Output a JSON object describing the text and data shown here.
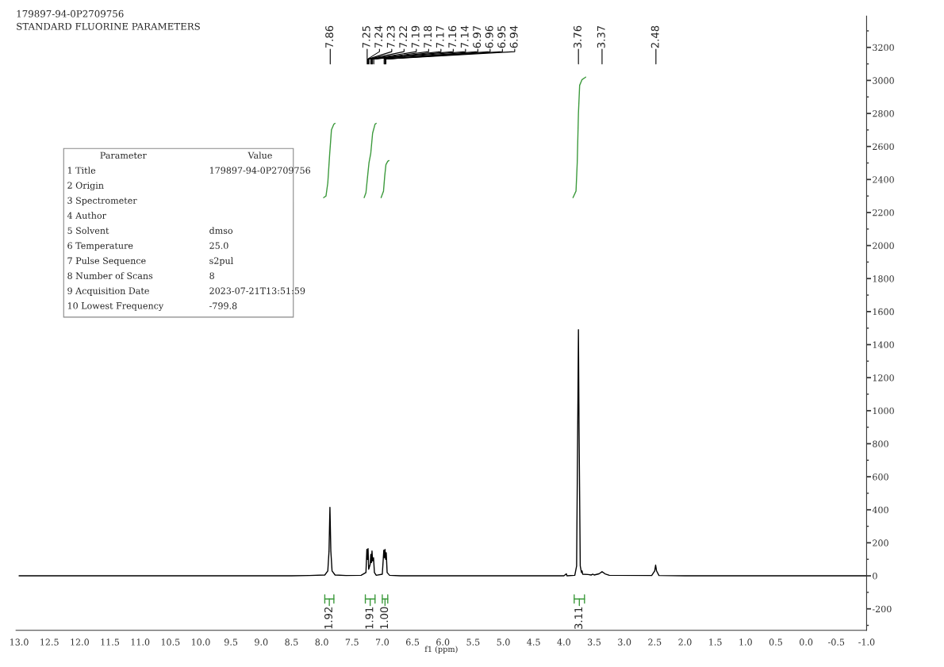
{
  "chart_data": {
    "type": "line",
    "title": "179897-94-0P2709756",
    "subtitle": "STANDARD FLUORINE PARAMETERS",
    "xlabel": "f1 (ppm)",
    "xlim": [
      13.05,
      -1.0
    ],
    "ylim": [
      -330,
      3390
    ],
    "xticks": [
      {
        "value": 13,
        "label": "13.0"
      },
      12.5,
      {
        "value": 12,
        "label": "12.0"
      },
      11.5,
      {
        "value": 11,
        "label": "11.0"
      },
      10.5,
      {
        "value": 10,
        "label": "10.0"
      },
      9.5,
      {
        "value": 9,
        "label": "9.0"
      },
      8.5,
      {
        "value": 8,
        "label": "8.0"
      },
      7.5,
      {
        "value": 7,
        "label": "7.0"
      },
      6.5,
      {
        "value": 6,
        "label": "6.0"
      },
      5.5,
      {
        "value": 5,
        "label": "5.0"
      },
      4.5,
      {
        "value": 4,
        "label": "4.0"
      },
      3.5,
      {
        "value": 3,
        "label": "3.0"
      },
      2.5,
      {
        "value": 2,
        "label": "2.0"
      },
      1.5,
      {
        "value": 1,
        "label": "1.0"
      },
      0.5,
      {
        "value": 0,
        "label": "0.0"
      },
      -0.5,
      {
        "value": -1,
        "label": "-1.0"
      }
    ],
    "yticks": [
      -200,
      0,
      200,
      400,
      600,
      800,
      1000,
      1200,
      1400,
      1600,
      1800,
      2000,
      2200,
      2400,
      2600,
      2800,
      3000,
      3200
    ],
    "grid": false,
    "legend": false,
    "tick_labels": "xy",
    "line_style": "solid",
    "series": [
      {
        "color": "#000000",
        "x": [
          13.0,
          8.5,
          8.2,
          7.95,
          7.9,
          7.88,
          7.865,
          7.85,
          7.83,
          7.78,
          7.6,
          7.35,
          7.27,
          7.255,
          7.245,
          7.235,
          7.225,
          7.2,
          7.19,
          7.18,
          7.17,
          7.16,
          7.145,
          7.13,
          7.1,
          7.0,
          6.975,
          6.965,
          6.955,
          6.945,
          6.935,
          6.92,
          6.88,
          6.7,
          4.0,
          3.96,
          3.95,
          3.82,
          3.79,
          3.77,
          3.76,
          3.75,
          3.73,
          3.71,
          3.7,
          3.69,
          3.6,
          3.55,
          3.52,
          3.5,
          3.42,
          3.37,
          3.32,
          3.25,
          2.55,
          2.5,
          2.485,
          2.47,
          2.43,
          2.0,
          -1.0
        ],
        "values": [
          0,
          0,
          2,
          5,
          30,
          150,
          415,
          150,
          30,
          5,
          2,
          3,
          20,
          160,
          100,
          165,
          40,
          70,
          130,
          80,
          150,
          90,
          110,
          20,
          3,
          10,
          155,
          110,
          160,
          100,
          140,
          20,
          3,
          0,
          0,
          12,
          0,
          3,
          60,
          1000,
          1490,
          900,
          60,
          20,
          30,
          10,
          8,
          5,
          10,
          5,
          12,
          25,
          12,
          3,
          2,
          30,
          65,
          30,
          2,
          0,
          0
        ]
      },
      {
        "color": "#3c9a3c",
        "x": [
          7.97,
          7.93,
          7.9,
          7.87,
          7.84,
          7.8,
          7.78
        ],
        "values": [
          2290,
          2300,
          2380,
          2550,
          2700,
          2735,
          2740
        ]
      },
      {
        "color": "#3c9a3c",
        "x": [
          7.3,
          7.27,
          7.24,
          7.22,
          7.19,
          7.16,
          7.12,
          7.1
        ],
        "values": [
          2290,
          2320,
          2430,
          2500,
          2560,
          2680,
          2735,
          2740
        ]
      },
      {
        "color": "#3c9a3c",
        "x": [
          7.02,
          6.98,
          6.96,
          6.94,
          6.91,
          6.89
        ],
        "values": [
          2290,
          2330,
          2420,
          2490,
          2510,
          2515
        ]
      },
      {
        "color": "#3c9a3c",
        "x": [
          3.85,
          3.8,
          3.78,
          3.76,
          3.74,
          3.7,
          3.64
        ],
        "values": [
          2290,
          2330,
          2500,
          2800,
          2970,
          3005,
          3020
        ]
      }
    ],
    "annotations": [
      "1.92",
      "1.91",
      "1.00",
      "3.11",
      "7.86",
      "7.25",
      "7.24",
      "7.23",
      "7.22",
      "7.19",
      "7.18",
      "7.17",
      "7.16",
      "7.14",
      "6.97",
      "6.96",
      "6.95",
      "6.94",
      "3.76",
      "3.37",
      "2.48",
      "Parameter\tValue\n1 Title\t179897-94-0P2709756\n2 Origin\n3 Spectrometer\n4 Author\n5 Solvent\tdmso\n6 Temperature\t25.0\n7 Pulse Sequence\ts2pul\n8 Number of Scans\t8\n9 Acquisition Date\t2023-07-21T13:51:59\n10 Lowest Frequency\t-799.8"
    ]
  }
}
